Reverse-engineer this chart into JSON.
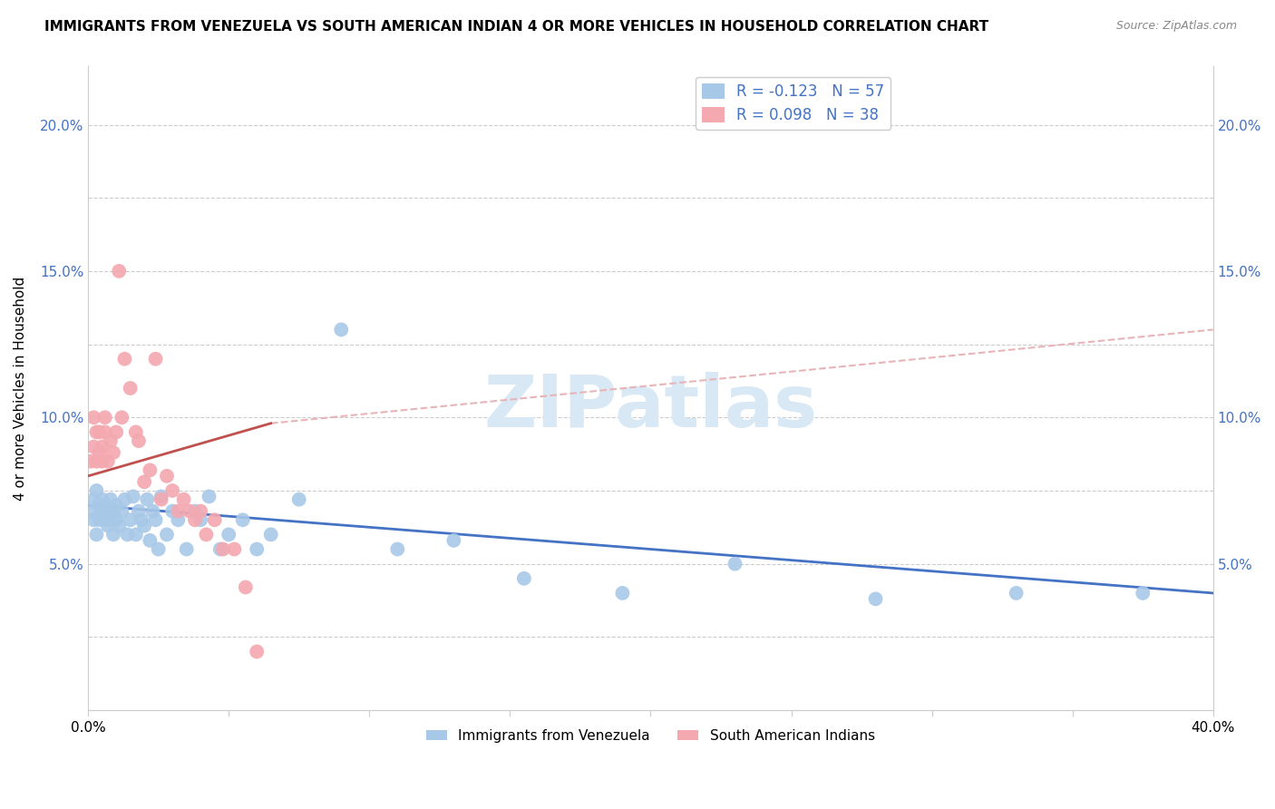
{
  "title": "IMMIGRANTS FROM VENEZUELA VS SOUTH AMERICAN INDIAN 4 OR MORE VEHICLES IN HOUSEHOLD CORRELATION CHART",
  "source": "Source: ZipAtlas.com",
  "ylabel": "4 or more Vehicles in Household",
  "xlim": [
    0.0,
    0.4
  ],
  "ylim": [
    0.0,
    0.22
  ],
  "blue_color": "#a8c8e8",
  "pink_color": "#f4a8b0",
  "line_blue_color": "#4472c4",
  "line_pink_solid_color": "#c0504d",
  "line_pink_dashed_color": "#e8b4b8",
  "watermark_color": "#d8e8f4",
  "title_fontsize": 11,
  "blue_scatter": {
    "x": [
      0.001,
      0.002,
      0.002,
      0.003,
      0.003,
      0.004,
      0.004,
      0.005,
      0.005,
      0.006,
      0.006,
      0.007,
      0.007,
      0.008,
      0.008,
      0.009,
      0.009,
      0.01,
      0.01,
      0.011,
      0.012,
      0.013,
      0.014,
      0.015,
      0.016,
      0.017,
      0.018,
      0.019,
      0.02,
      0.021,
      0.022,
      0.023,
      0.024,
      0.025,
      0.026,
      0.028,
      0.03,
      0.032,
      0.035,
      0.038,
      0.04,
      0.043,
      0.047,
      0.05,
      0.055,
      0.06,
      0.065,
      0.075,
      0.09,
      0.11,
      0.13,
      0.155,
      0.19,
      0.23,
      0.28,
      0.33,
      0.375
    ],
    "y": [
      0.068,
      0.072,
      0.065,
      0.075,
      0.06,
      0.07,
      0.065,
      0.068,
      0.072,
      0.065,
      0.07,
      0.063,
      0.068,
      0.072,
      0.065,
      0.06,
      0.068,
      0.065,
      0.07,
      0.063,
      0.068,
      0.072,
      0.06,
      0.065,
      0.073,
      0.06,
      0.068,
      0.065,
      0.063,
      0.072,
      0.058,
      0.068,
      0.065,
      0.055,
      0.073,
      0.06,
      0.068,
      0.065,
      0.055,
      0.068,
      0.065,
      0.073,
      0.055,
      0.06,
      0.065,
      0.055,
      0.06,
      0.072,
      0.13,
      0.055,
      0.058,
      0.045,
      0.04,
      0.05,
      0.038,
      0.04,
      0.04
    ]
  },
  "pink_scatter": {
    "x": [
      0.001,
      0.002,
      0.002,
      0.003,
      0.003,
      0.004,
      0.004,
      0.005,
      0.005,
      0.006,
      0.006,
      0.007,
      0.008,
      0.009,
      0.01,
      0.011,
      0.012,
      0.013,
      0.015,
      0.017,
      0.018,
      0.02,
      0.022,
      0.024,
      0.026,
      0.028,
      0.03,
      0.032,
      0.034,
      0.036,
      0.038,
      0.04,
      0.042,
      0.045,
      0.048,
      0.052,
      0.056,
      0.06
    ],
    "y": [
      0.085,
      0.1,
      0.09,
      0.095,
      0.085,
      0.095,
      0.088,
      0.09,
      0.085,
      0.095,
      0.1,
      0.085,
      0.092,
      0.088,
      0.095,
      0.15,
      0.1,
      0.12,
      0.11,
      0.095,
      0.092,
      0.078,
      0.082,
      0.12,
      0.072,
      0.08,
      0.075,
      0.068,
      0.072,
      0.068,
      0.065,
      0.068,
      0.06,
      0.065,
      0.055,
      0.055,
      0.042,
      0.02
    ]
  },
  "blue_line_x": [
    0.0,
    0.4
  ],
  "blue_line_y": [
    0.07,
    0.04
  ],
  "pink_solid_line_x": [
    0.0,
    0.065
  ],
  "pink_solid_line_y": [
    0.08,
    0.098
  ],
  "pink_dashed_line_x": [
    0.065,
    0.4
  ],
  "pink_dashed_line_y": [
    0.098,
    0.13
  ]
}
